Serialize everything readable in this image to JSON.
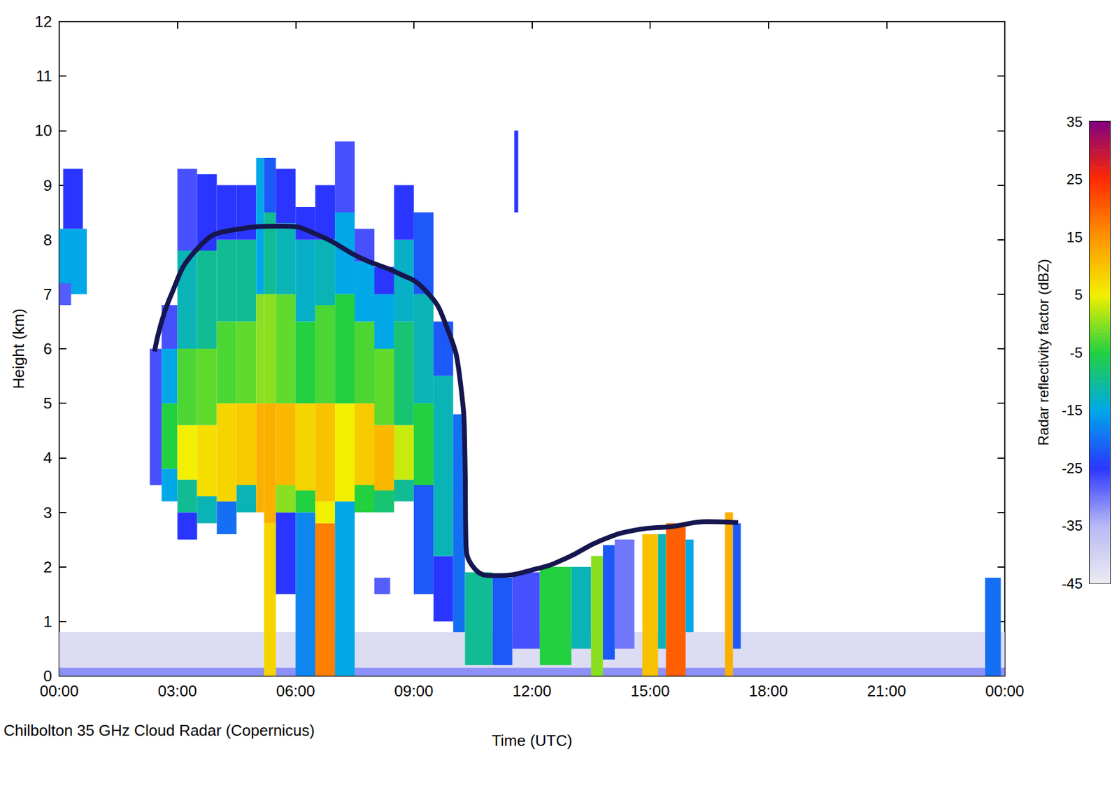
{
  "chart_data": {
    "type": "heatmap",
    "caption": "Chilbolton 35 GHz Cloud Radar (Copernicus)",
    "x_label": "Time (UTC)",
    "y_label": "Height (km)",
    "xlim": [
      0,
      24
    ],
    "xticks": [
      {
        "value": 0,
        "label": "00:00"
      },
      {
        "value": 3,
        "label": "03:00"
      },
      {
        "value": 6,
        "label": "06:00"
      },
      {
        "value": 9,
        "label": "09:00"
      },
      {
        "value": 12,
        "label": "12:00"
      },
      {
        "value": 15,
        "label": "15:00"
      },
      {
        "value": 18,
        "label": "18:00"
      },
      {
        "value": 21,
        "label": "21:00"
      },
      {
        "value": 24,
        "label": "00:00"
      }
    ],
    "ylim": [
      0,
      12
    ],
    "yticks": [
      0,
      1,
      2,
      3,
      4,
      5,
      6,
      7,
      8,
      9,
      10,
      11,
      12
    ],
    "grid": false,
    "cells": [
      [
        0,
        24,
        0.15,
        0.8,
        -42
      ],
      [
        0,
        24,
        0,
        0.15,
        -32
      ],
      [
        0.0,
        0.7,
        7.0,
        8.2,
        -15
      ],
      [
        0.1,
        0.6,
        8.2,
        9.3,
        -25
      ],
      [
        0.0,
        0.3,
        6.8,
        7.2,
        -28
      ],
      [
        2.3,
        2.6,
        3.5,
        6.0,
        -27
      ],
      [
        2.6,
        3.0,
        3.2,
        3.8,
        -15
      ],
      [
        2.6,
        3.0,
        3.8,
        5.0,
        -5
      ],
      [
        2.6,
        3.0,
        5.0,
        6.0,
        -15
      ],
      [
        2.6,
        3.0,
        6.0,
        6.8,
        -27
      ],
      [
        3.0,
        3.5,
        2.5,
        3.0,
        -25
      ],
      [
        3.0,
        3.5,
        3.0,
        3.6,
        -10
      ],
      [
        3.0,
        3.5,
        3.6,
        4.6,
        5
      ],
      [
        3.0,
        3.5,
        4.6,
        6.0,
        -3
      ],
      [
        3.0,
        3.5,
        6.0,
        7.8,
        -12
      ],
      [
        3.0,
        3.5,
        7.8,
        9.3,
        -27
      ],
      [
        3.5,
        4.0,
        2.8,
        3.3,
        -12
      ],
      [
        3.5,
        4.0,
        3.3,
        4.6,
        7
      ],
      [
        3.5,
        4.0,
        4.6,
        6.0,
        -2
      ],
      [
        3.5,
        4.0,
        6.0,
        7.8,
        -10
      ],
      [
        3.5,
        4.0,
        7.8,
        9.2,
        -25
      ],
      [
        4.0,
        4.5,
        2.6,
        3.2,
        -20
      ],
      [
        4.0,
        4.5,
        3.2,
        5.0,
        8
      ],
      [
        4.0,
        4.5,
        5.0,
        6.5,
        -3
      ],
      [
        4.0,
        4.5,
        6.5,
        8.0,
        -10
      ],
      [
        4.0,
        4.5,
        8.0,
        9.0,
        -25
      ],
      [
        4.5,
        5.0,
        3.0,
        3.5,
        -12
      ],
      [
        4.5,
        5.0,
        3.5,
        5.0,
        9
      ],
      [
        4.5,
        5.0,
        5.0,
        6.5,
        -2
      ],
      [
        4.5,
        5.0,
        6.5,
        8.0,
        -10
      ],
      [
        4.5,
        5.0,
        8.0,
        9.0,
        -25
      ],
      [
        5.0,
        5.2,
        3.0,
        5.0,
        12
      ],
      [
        5.0,
        5.2,
        5.0,
        7.0,
        0
      ],
      [
        5.0,
        5.2,
        7.0,
        9.5,
        -15
      ],
      [
        5.2,
        5.5,
        0,
        2.8,
        8
      ],
      [
        5.2,
        5.5,
        2.8,
        5.0,
        12
      ],
      [
        5.2,
        5.5,
        5.0,
        7.0,
        0
      ],
      [
        5.2,
        5.5,
        7.0,
        8.5,
        -10
      ],
      [
        5.2,
        5.5,
        8.5,
        9.5,
        -22
      ],
      [
        5.5,
        6.0,
        1.5,
        3.0,
        -25
      ],
      [
        5.5,
        6.0,
        3.0,
        3.5,
        0
      ],
      [
        5.5,
        6.0,
        3.5,
        5.0,
        11
      ],
      [
        5.5,
        6.0,
        5.0,
        7.0,
        -2
      ],
      [
        5.5,
        6.0,
        7.0,
        8.3,
        -12
      ],
      [
        5.5,
        6.0,
        8.3,
        9.3,
        -25
      ],
      [
        6.0,
        6.5,
        0,
        3.0,
        -18
      ],
      [
        6.0,
        6.5,
        3.0,
        3.4,
        -5
      ],
      [
        6.0,
        6.5,
        3.4,
        5.0,
        8
      ],
      [
        6.0,
        6.5,
        5.0,
        6.5,
        -5
      ],
      [
        6.0,
        6.5,
        6.5,
        8.0,
        -13
      ],
      [
        6.0,
        6.5,
        8.0,
        8.6,
        -25
      ],
      [
        6.5,
        7.0,
        0,
        2.8,
        17
      ],
      [
        6.5,
        7.0,
        2.8,
        3.2,
        5
      ],
      [
        6.5,
        7.0,
        3.2,
        5.0,
        10
      ],
      [
        6.5,
        7.0,
        5.0,
        6.8,
        -3
      ],
      [
        6.5,
        7.0,
        6.8,
        8.0,
        -12
      ],
      [
        6.5,
        7.0,
        8.0,
        9.0,
        -25
      ],
      [
        7.0,
        7.5,
        0,
        3.2,
        -15
      ],
      [
        7.0,
        7.5,
        3.2,
        5.0,
        5
      ],
      [
        7.0,
        7.5,
        5.0,
        7.0,
        -5
      ],
      [
        7.0,
        7.5,
        7.0,
        8.5,
        -15
      ],
      [
        7.0,
        7.5,
        8.5,
        9.8,
        -27
      ],
      [
        7.5,
        8.0,
        3.0,
        3.5,
        -5
      ],
      [
        7.5,
        8.0,
        3.5,
        5.0,
        9
      ],
      [
        7.5,
        8.0,
        5.0,
        6.5,
        -3
      ],
      [
        7.5,
        8.0,
        6.5,
        7.6,
        -15
      ],
      [
        7.5,
        8.0,
        7.6,
        8.2,
        -27
      ],
      [
        8.0,
        8.4,
        1.5,
        1.8,
        -28
      ],
      [
        8.0,
        8.5,
        3.0,
        3.4,
        -8
      ],
      [
        8.0,
        8.5,
        3.4,
        4.6,
        11
      ],
      [
        8.0,
        8.5,
        4.6,
        6.0,
        -2
      ],
      [
        8.0,
        8.5,
        6.0,
        7.0,
        -15
      ],
      [
        8.0,
        8.5,
        7.0,
        7.5,
        -25
      ],
      [
        8.5,
        9.0,
        3.2,
        3.6,
        -10
      ],
      [
        8.5,
        9.0,
        3.6,
        4.6,
        3
      ],
      [
        8.5,
        9.0,
        4.6,
        6.5,
        -8
      ],
      [
        8.5,
        9.0,
        6.5,
        8.0,
        -13
      ],
      [
        8.5,
        9.0,
        8.0,
        9.0,
        -25
      ],
      [
        9.0,
        9.5,
        1.5,
        3.5,
        -22
      ],
      [
        9.0,
        9.5,
        3.5,
        5.0,
        -5
      ],
      [
        9.0,
        9.5,
        5.0,
        7.0,
        -12
      ],
      [
        9.0,
        9.5,
        7.0,
        8.5,
        -22
      ],
      [
        9.5,
        10.0,
        1.0,
        2.2,
        -25
      ],
      [
        9.5,
        10.0,
        2.2,
        5.5,
        -12
      ],
      [
        9.5,
        10.0,
        5.5,
        6.5,
        -22
      ],
      [
        10.0,
        10.3,
        0.8,
        4.8,
        -20
      ],
      [
        10.3,
        11.0,
        0.2,
        1.9,
        -10
      ],
      [
        11.0,
        11.5,
        0.2,
        1.8,
        -22
      ],
      [
        11.5,
        12.2,
        0.5,
        1.9,
        -27
      ],
      [
        12.2,
        13.0,
        0.2,
        2.0,
        -5
      ],
      [
        13.0,
        13.5,
        0.5,
        2.0,
        -12
      ],
      [
        13.5,
        13.8,
        0,
        2.2,
        0
      ],
      [
        13.8,
        14.1,
        0.3,
        2.4,
        -22
      ],
      [
        14.1,
        14.6,
        0.5,
        2.5,
        -30
      ],
      [
        14.8,
        15.2,
        0,
        2.6,
        10
      ],
      [
        15.2,
        15.4,
        0.5,
        2.6,
        -12
      ],
      [
        15.4,
        15.9,
        0,
        2.8,
        20
      ],
      [
        15.9,
        16.1,
        0.8,
        2.5,
        -15
      ],
      [
        16.9,
        17.1,
        0,
        3.0,
        12
      ],
      [
        17.1,
        17.3,
        0.5,
        2.8,
        -22
      ],
      [
        11.55,
        11.65,
        8.5,
        10.0,
        -25
      ],
      [
        23.5,
        23.9,
        0,
        1.8,
        -20
      ]
    ],
    "curve": {
      "color": "#16164f",
      "x": [
        2.42,
        2.82,
        3.54,
        4.43,
        5.69,
        6.59,
        7.66,
        8.56,
        9.28,
        9.82,
        10.18,
        10.3,
        10.32,
        10.54,
        11.08,
        12.15,
        12.87,
        13.77,
        14.67,
        15.56,
        16.46,
        17.23
      ],
      "y": [
        5.95,
        6.95,
        7.86,
        8.18,
        8.25,
        8.08,
        7.66,
        7.4,
        7.08,
        6.43,
        5.4,
        3.97,
        2.55,
        1.97,
        1.84,
        1.97,
        2.16,
        2.49,
        2.68,
        2.74,
        2.83,
        2.81
      ]
    },
    "colorbar": {
      "label": "Radar reflectivity factor (dBZ)",
      "range": [
        -45,
        35
      ],
      "ticks": [
        -45,
        -35,
        -25,
        -15,
        -5,
        5,
        15,
        25,
        35
      ]
    }
  }
}
